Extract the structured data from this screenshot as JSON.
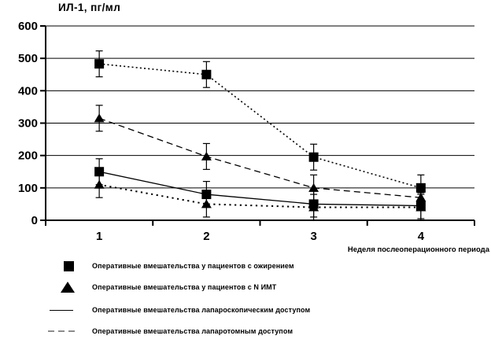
{
  "figure": {
    "title": "ИЛ-1, пг/мл",
    "x_axis_title": "Неделя послеоперационного периода"
  },
  "legend": {
    "items": [
      {
        "marker": "black-square",
        "label": "Оперативные вмешательства  у пациентов с ожирением"
      },
      {
        "marker": "black-triangle",
        "label": "Оперативные вмешательства  у пациентов с N  ИМТ"
      },
      {
        "marker": "solid-line",
        "label": "Оперативные вмешательства  лапароскопическим доступом"
      },
      {
        "marker": "dashed-line",
        "label": "Оперативные вмешательства  лапаротомным доступом"
      }
    ]
  },
  "chart_data": {
    "type": "line",
    "title": "ИЛ-1, пг/мл",
    "ylabel": "ИЛ-1, пг/мл",
    "xlabel": "Неделя послеоперационного периода",
    "categories": [
      "1",
      "2",
      "3",
      "4"
    ],
    "ylim": [
      0,
      600
    ],
    "yticks": [
      0,
      100,
      200,
      300,
      400,
      500,
      600
    ],
    "grid": "horizontal",
    "error_bars": true,
    "legend_position": "below-left",
    "series": [
      {
        "id": "square-dotted",
        "marker": "square",
        "line_style": "dotted",
        "values": [
          483,
          450,
          195,
          100
        ],
        "error": 40
      },
      {
        "id": "triangle-dashed",
        "marker": "triangle",
        "line_style": "dashed",
        "values": [
          315,
          197,
          100,
          70
        ],
        "error": 40
      },
      {
        "id": "square-solid",
        "marker": "square",
        "line_style": "solid",
        "values": [
          150,
          80,
          50,
          45
        ],
        "error": 40
      },
      {
        "id": "triangle-dotted",
        "marker": "triangle",
        "line_style": "dotted-sparse",
        "values": [
          110,
          50,
          40,
          40
        ],
        "error": 40
      }
    ],
    "colors": {
      "ink": "#000000",
      "background": "#ffffff",
      "legend_dash": "#8c8c8c"
    }
  }
}
